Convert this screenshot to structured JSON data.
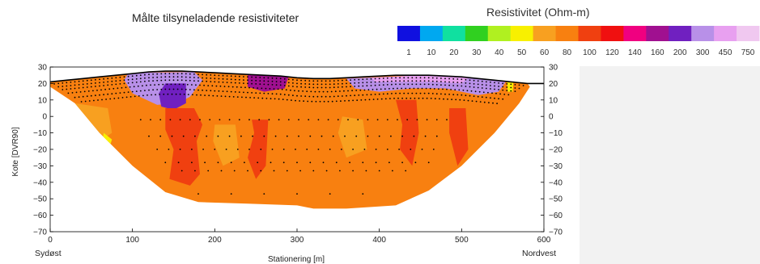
{
  "chart_data": {
    "type": "heatmap",
    "title": "Målte tilsyneladende resistiviteter",
    "xlabel": "Stationering [m]",
    "ylabel": "Kote [DVR90]",
    "xlim": [
      0,
      600
    ],
    "ylim": [
      -70,
      30
    ],
    "x_ticks": [
      "0",
      "100",
      "200",
      "300",
      "400",
      "500",
      "600"
    ],
    "y_ticks": [
      "30",
      "20",
      "10",
      "0",
      "−10",
      "−20",
      "−30",
      "−40",
      "−50",
      "−60",
      "−70"
    ],
    "right_y_ticks": [
      "30",
      "20",
      "10",
      "0",
      "−10",
      "−20",
      "−30",
      "−40",
      "−50",
      "−60",
      "−70"
    ],
    "left_end_label": "Sydøst",
    "right_end_label": "Nordvest",
    "colorbar": {
      "title": "Resistivitet (Ohm-m)",
      "labels": [
        "1",
        "10",
        "20",
        "30",
        "40",
        "50",
        "60",
        "80",
        "100",
        "120",
        "140",
        "160",
        "200",
        "300",
        "450",
        "750"
      ],
      "colors": [
        "#1010e0",
        "#00a8f0",
        "#10e0a0",
        "#30d020",
        "#b0f020",
        "#f8f000",
        "#f8a020",
        "#f88010",
        "#f04010",
        "#f01010",
        "#f00080",
        "#a01090",
        "#7020c0",
        "#b890e8",
        "#e8a0f0",
        "#f0c8f0"
      ]
    },
    "terrain_x": [
      0,
      20,
      40,
      60,
      80,
      100,
      120,
      140,
      160,
      180,
      200,
      220,
      240,
      260,
      280,
      300,
      320,
      340,
      360,
      380,
      400,
      420,
      440,
      460,
      480,
      500,
      520,
      540,
      560,
      580,
      600
    ],
    "terrain_elev": [
      21,
      22,
      23,
      24,
      25,
      26,
      27,
      27.5,
      27.5,
      27,
      26.5,
      26,
      25.5,
      25,
      24.5,
      23.5,
      23,
      23,
      23.5,
      24,
      24.5,
      25,
      25,
      25,
      24.5,
      24,
      23,
      22,
      21,
      20,
      20
    ],
    "model_bottom": [
      [
        0,
        18
      ],
      [
        30,
        8
      ],
      [
        60,
        -10
      ],
      [
        100,
        -30
      ],
      [
        140,
        -46
      ],
      [
        180,
        -52
      ],
      [
        240,
        -53
      ],
      [
        300,
        -54
      ],
      [
        320,
        -56
      ],
      [
        360,
        -56
      ],
      [
        420,
        -54
      ],
      [
        460,
        -45
      ],
      [
        500,
        -30
      ],
      [
        540,
        -10
      ],
      [
        570,
        8
      ],
      [
        583,
        18
      ]
    ],
    "background_value": 80,
    "bodies": [
      {
        "value": 300,
        "region": [
          [
            95,
            26.5
          ],
          [
            175,
            27
          ],
          [
            185,
            22
          ],
          [
            170,
            12
          ],
          [
            155,
            8
          ],
          [
            130,
            7
          ],
          [
            100,
            14
          ],
          [
            90,
            22
          ]
        ]
      },
      {
        "value": 200,
        "region": [
          [
            140,
            20
          ],
          [
            165,
            20
          ],
          [
            165,
            8
          ],
          [
            150,
            4
          ],
          [
            135,
            6
          ],
          [
            132,
            14
          ]
        ]
      },
      {
        "value": 300,
        "region": [
          [
            360,
            23
          ],
          [
            460,
            25
          ],
          [
            555,
            22
          ],
          [
            545,
            15
          ],
          [
            520,
            13
          ],
          [
            480,
            17
          ],
          [
            440,
            17
          ],
          [
            400,
            15
          ],
          [
            370,
            17
          ]
        ]
      },
      {
        "value": 450,
        "region": [
          [
            390,
            23.5
          ],
          [
            450,
            25
          ],
          [
            510,
            24
          ],
          [
            500,
            20
          ],
          [
            470,
            21
          ],
          [
            420,
            21
          ],
          [
            395,
            21
          ]
        ]
      },
      {
        "value": 160,
        "region": [
          [
            240,
            25.5
          ],
          [
            290,
            24.5
          ],
          [
            285,
            17
          ],
          [
            260,
            15
          ],
          [
            240,
            18
          ]
        ]
      },
      {
        "value": 100,
        "region": [
          [
            140,
            5
          ],
          [
            175,
            5
          ],
          [
            185,
            -5
          ],
          [
            178,
            -15
          ],
          [
            182,
            -35
          ],
          [
            170,
            -42
          ],
          [
            145,
            -38
          ],
          [
            150,
            -20
          ],
          [
            140,
            -8
          ]
        ]
      },
      {
        "value": 100,
        "region": [
          [
            245,
            -2
          ],
          [
            265,
            -2
          ],
          [
            262,
            -30
          ],
          [
            250,
            -38
          ],
          [
            240,
            -25
          ],
          [
            248,
            -10
          ]
        ]
      },
      {
        "value": 100,
        "region": [
          [
            420,
            10
          ],
          [
            445,
            10
          ],
          [
            448,
            -10
          ],
          [
            440,
            -30
          ],
          [
            425,
            -20
          ],
          [
            428,
            -5
          ]
        ]
      },
      {
        "value": 100,
        "region": [
          [
            485,
            5
          ],
          [
            505,
            5
          ],
          [
            508,
            -20
          ],
          [
            495,
            -30
          ],
          [
            485,
            -10
          ]
        ]
      },
      {
        "value": 60,
        "region": [
          [
            30,
            8
          ],
          [
            70,
            5
          ],
          [
            75,
            -10
          ],
          [
            60,
            -15
          ],
          [
            40,
            -5
          ]
        ]
      },
      {
        "value": 60,
        "region": [
          [
            200,
            -5
          ],
          [
            225,
            -5
          ],
          [
            230,
            -25
          ],
          [
            210,
            -30
          ],
          [
            198,
            -15
          ]
        ]
      },
      {
        "value": 60,
        "region": [
          [
            355,
            0
          ],
          [
            380,
            -2
          ],
          [
            385,
            -20
          ],
          [
            360,
            -25
          ],
          [
            350,
            -10
          ]
        ]
      },
      {
        "value": 50,
        "region": [
          [
            65,
            -10
          ],
          [
            75,
            -14
          ],
          [
            70,
            -22
          ],
          [
            63,
            -18
          ]
        ]
      },
      {
        "value": 50,
        "region": [
          [
            555,
            22
          ],
          [
            563,
            22
          ],
          [
            562,
            15
          ],
          [
            556,
            15
          ]
        ]
      }
    ]
  }
}
